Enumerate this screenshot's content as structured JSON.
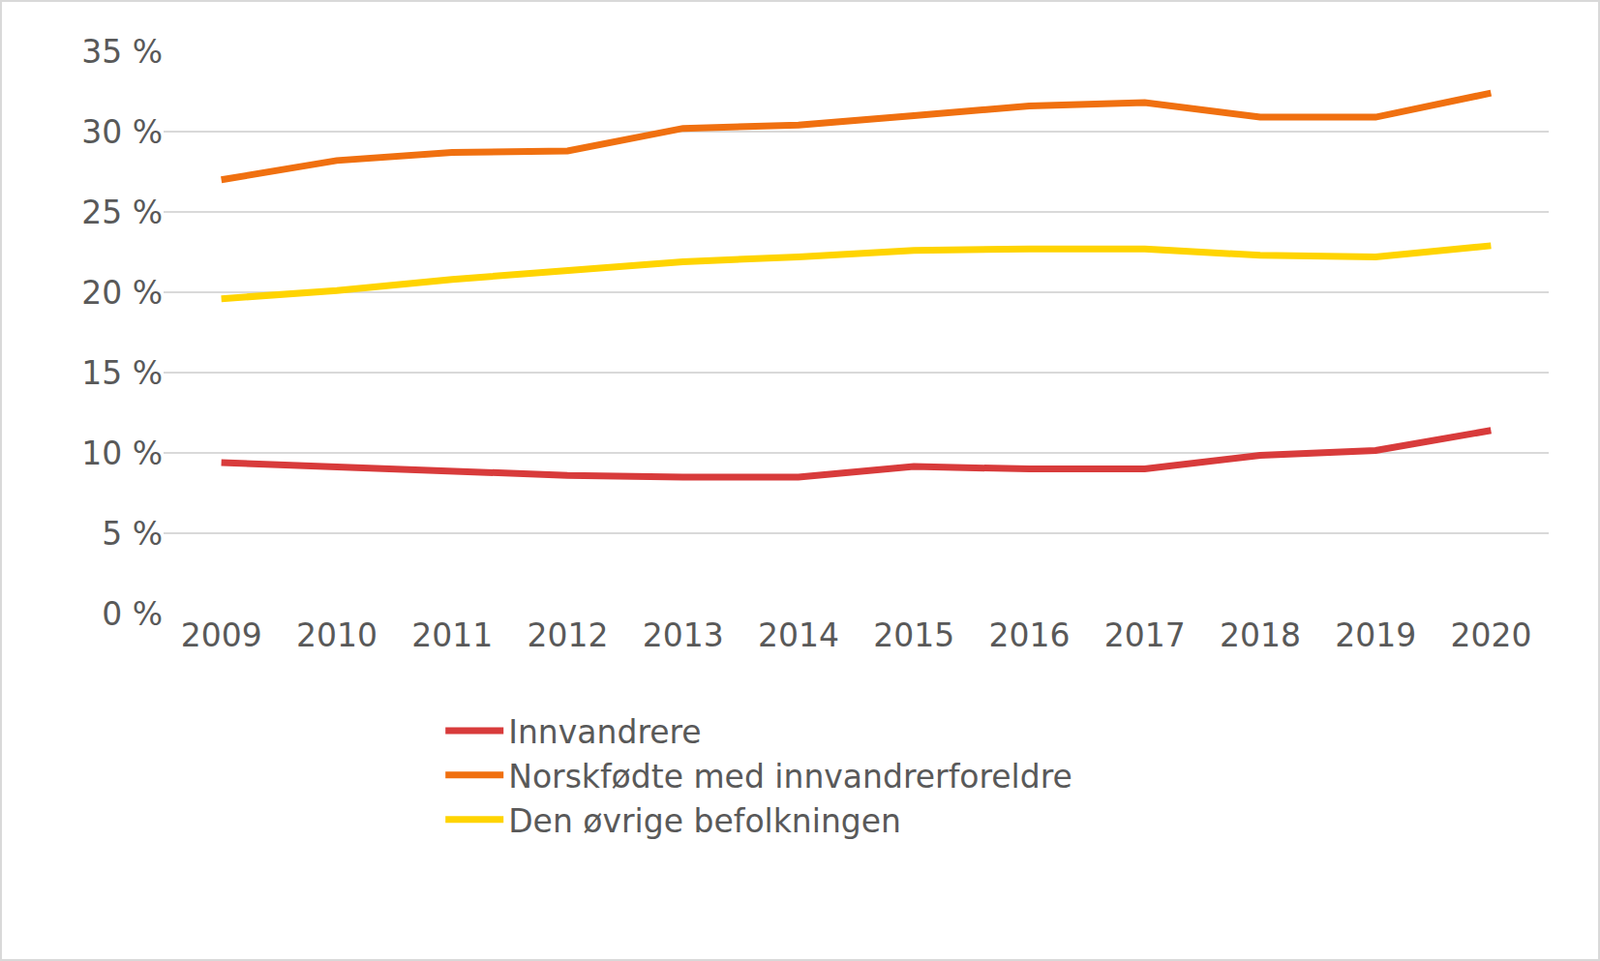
{
  "chart_data": {
    "type": "line",
    "categories": [
      "2009",
      "2010",
      "2011",
      "2012",
      "2013",
      "2014",
      "2015",
      "2016",
      "2017",
      "2018",
      "2019",
      "2020"
    ],
    "series": [
      {
        "name": "Innvandrere",
        "color": "#d83b3b",
        "values": [
          9.4,
          9.15,
          8.9,
          8.6,
          8.5,
          8.5,
          9.15,
          9.0,
          9.0,
          9.85,
          10.15,
          11.4
        ]
      },
      {
        "name": "Norskfødte med innvandrerforeldre",
        "color": "#f07010",
        "values": [
          27.0,
          28.2,
          28.7,
          28.8,
          30.2,
          30.4,
          31.0,
          31.6,
          31.8,
          30.9,
          30.9,
          32.4
        ]
      },
      {
        "name": "Den øvrige befolkningen",
        "color": "#ffd400",
        "values": [
          19.6,
          20.1,
          20.8,
          21.4,
          21.9,
          22.2,
          22.6,
          22.7,
          22.7,
          22.3,
          22.2,
          22.9
        ]
      }
    ],
    "ylim": [
      0,
      35
    ],
    "yticks": [
      {
        "value": 0,
        "label": "0 %"
      },
      {
        "value": 5,
        "label": "5 %"
      },
      {
        "value": 10,
        "label": "10 %"
      },
      {
        "value": 15,
        "label": "15 %"
      },
      {
        "value": 20,
        "label": "20 %"
      },
      {
        "value": 25,
        "label": "25 %"
      },
      {
        "value": 30,
        "label": "30 %"
      },
      {
        "value": 35,
        "label": "35 %"
      }
    ],
    "grid": true,
    "legend": "bottom"
  }
}
